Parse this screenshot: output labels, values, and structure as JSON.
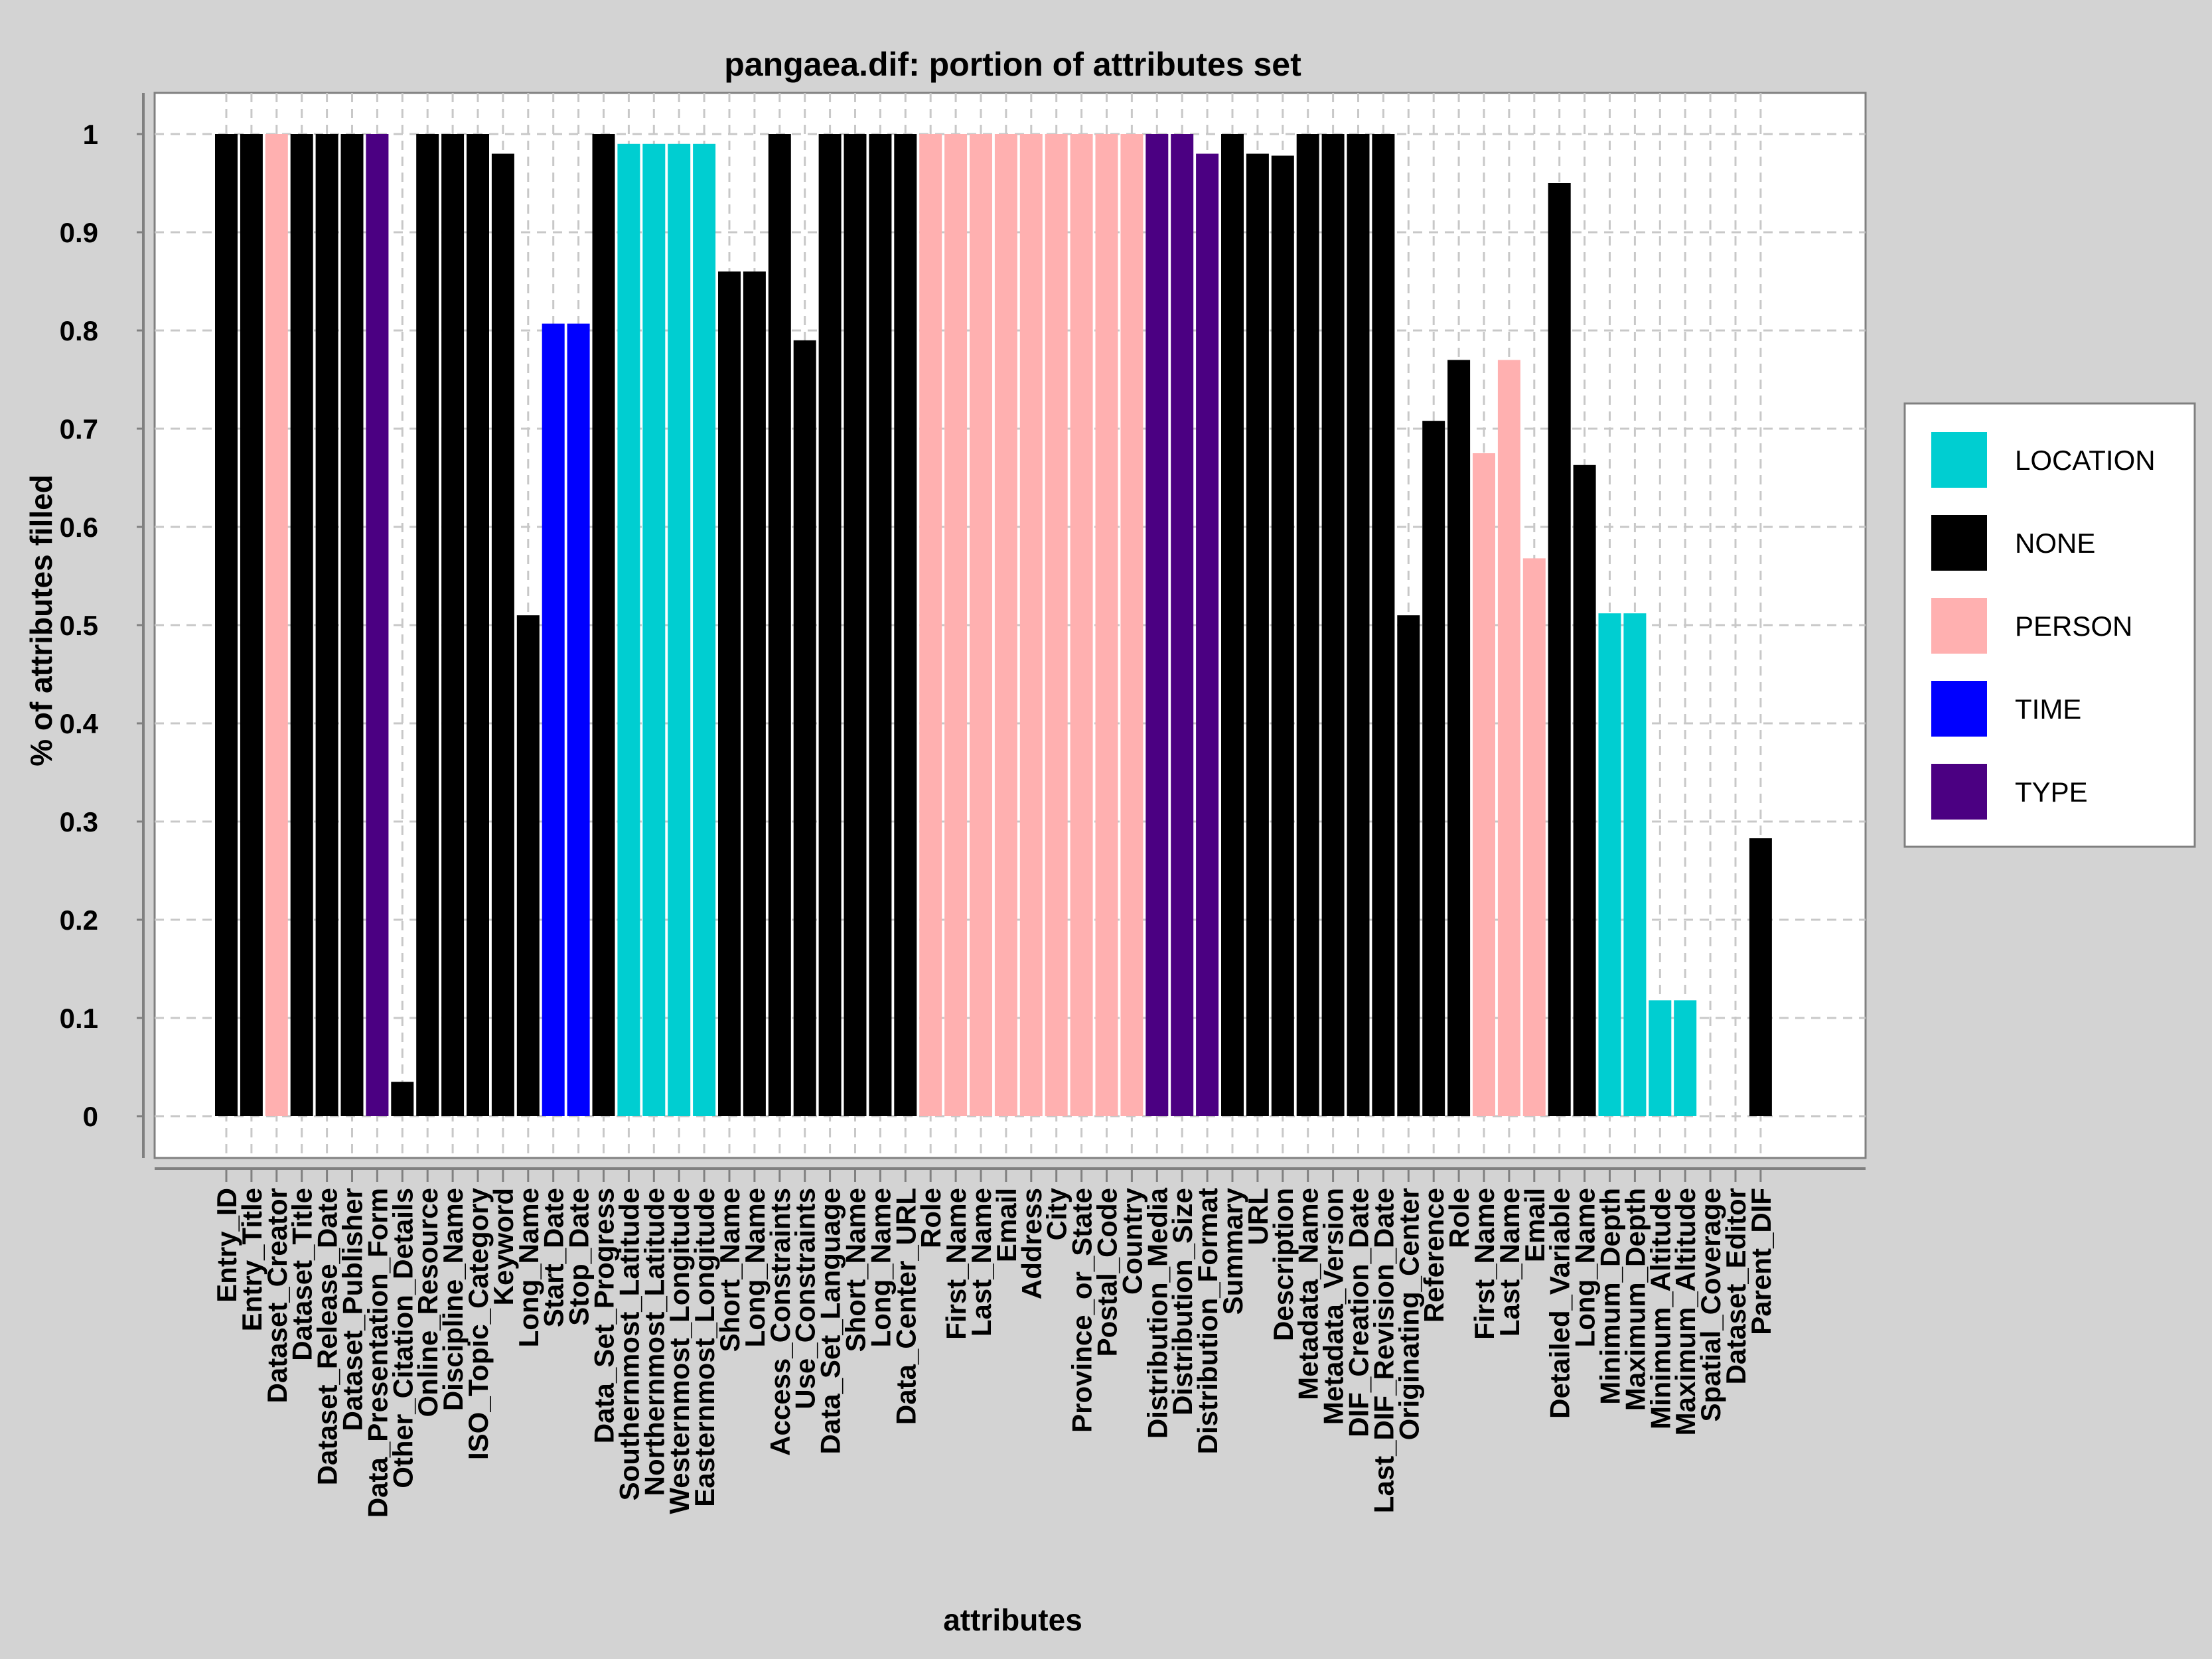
{
  "chart_data": {
    "type": "bar",
    "title": "pangaea.dif: portion of attributes set",
    "xlabel": "attributes",
    "ylabel": "% of attributes filled",
    "ylim": [
      0,
      1
    ],
    "yticks": [
      "0",
      "0.1",
      "0.2",
      "0.3",
      "0.4",
      "0.5",
      "0.6",
      "0.7",
      "0.8",
      "0.9",
      "1"
    ],
    "grid": true,
    "legend_position": "right",
    "legend": [
      {
        "label": "LOCATION",
        "color": "#00ced1"
      },
      {
        "label": "NONE",
        "color": "#000000"
      },
      {
        "label": "PERSON",
        "color": "#ffb0b0"
      },
      {
        "label": "TIME",
        "color": "#0000ff"
      },
      {
        "label": "TYPE",
        "color": "#4b0082"
      }
    ],
    "categories": [
      "Entry_ID",
      "Entry_Title",
      "Dataset_Creator",
      "Dataset_Title",
      "Dataset_Release_Date",
      "Dataset_Publisher",
      "Data_Presentation_Form",
      "Other_Citation_Details",
      "Online_Resource",
      "Discipline_Name",
      "ISO_Topic_Category",
      "Keyword",
      "Long_Name",
      "Start_Date",
      "Stop_Date",
      "Data_Set_Progress",
      "Southernmost_Latitude",
      "Northernmost_Latitude",
      "Westernmost_Longitude",
      "Easternmost_Longitude",
      "Short_Name",
      "Long_Name",
      "Access_Constraints",
      "Use_Constraints",
      "Data_Set_Language",
      "Short_Name",
      "Long_Name",
      "Data_Center_URL",
      "Role",
      "First_Name",
      "Last_Name",
      "Email",
      "Address",
      "City",
      "Province_or_State",
      "Postal_Code",
      "Country",
      "Distribution_Media",
      "Distribution_Size",
      "Distribution_Format",
      "Summary",
      "URL",
      "Description",
      "Metadata_Name",
      "Metadata_Version",
      "DIF_Creation_Date",
      "Last_DIF_Revision_Date",
      "Originating_Center",
      "Reference",
      "Role",
      "First_Name",
      "Last_Name",
      "Email",
      "Detailed_Variable",
      "Long_Name",
      "Minimum_Depth",
      "Maximum_Depth",
      "Minimum_Altitude",
      "Maximum_Altitude",
      "Spatial_Coverage",
      "Dataset_Editor",
      "Parent_DIF"
    ],
    "values": [
      1,
      1,
      1,
      1,
      1,
      1,
      1,
      0.035,
      1,
      1,
      1,
      0.98,
      0.51,
      0.807,
      0.807,
      1,
      0.99,
      0.99,
      0.99,
      0.99,
      0.86,
      0.86,
      1,
      0.79,
      1,
      1,
      1,
      1,
      1,
      1,
      1,
      1,
      1,
      1,
      1,
      1,
      1,
      1,
      1,
      0.98,
      1,
      0.98,
      0.978,
      1,
      1,
      1,
      1,
      0.51,
      0.708,
      0.77,
      0.675,
      0.77,
      0.568,
      0.95,
      0.663,
      0.512,
      0.512,
      0.118,
      0.118,
      0,
      0,
      0.283
    ],
    "groups": [
      "NONE",
      "NONE",
      "PERSON",
      "NONE",
      "NONE",
      "NONE",
      "TYPE",
      "NONE",
      "NONE",
      "NONE",
      "NONE",
      "NONE",
      "NONE",
      "TIME",
      "TIME",
      "NONE",
      "LOCATION",
      "LOCATION",
      "LOCATION",
      "LOCATION",
      "NONE",
      "NONE",
      "NONE",
      "NONE",
      "NONE",
      "NONE",
      "NONE",
      "NONE",
      "PERSON",
      "PERSON",
      "PERSON",
      "PERSON",
      "PERSON",
      "PERSON",
      "PERSON",
      "PERSON",
      "PERSON",
      "TYPE",
      "TYPE",
      "TYPE",
      "NONE",
      "NONE",
      "NONE",
      "NONE",
      "NONE",
      "NONE",
      "NONE",
      "NONE",
      "NONE",
      "NONE",
      "PERSON",
      "PERSON",
      "PERSON",
      "NONE",
      "NONE",
      "LOCATION",
      "LOCATION",
      "LOCATION",
      "LOCATION",
      "NONE",
      "NONE",
      "NONE"
    ]
  }
}
